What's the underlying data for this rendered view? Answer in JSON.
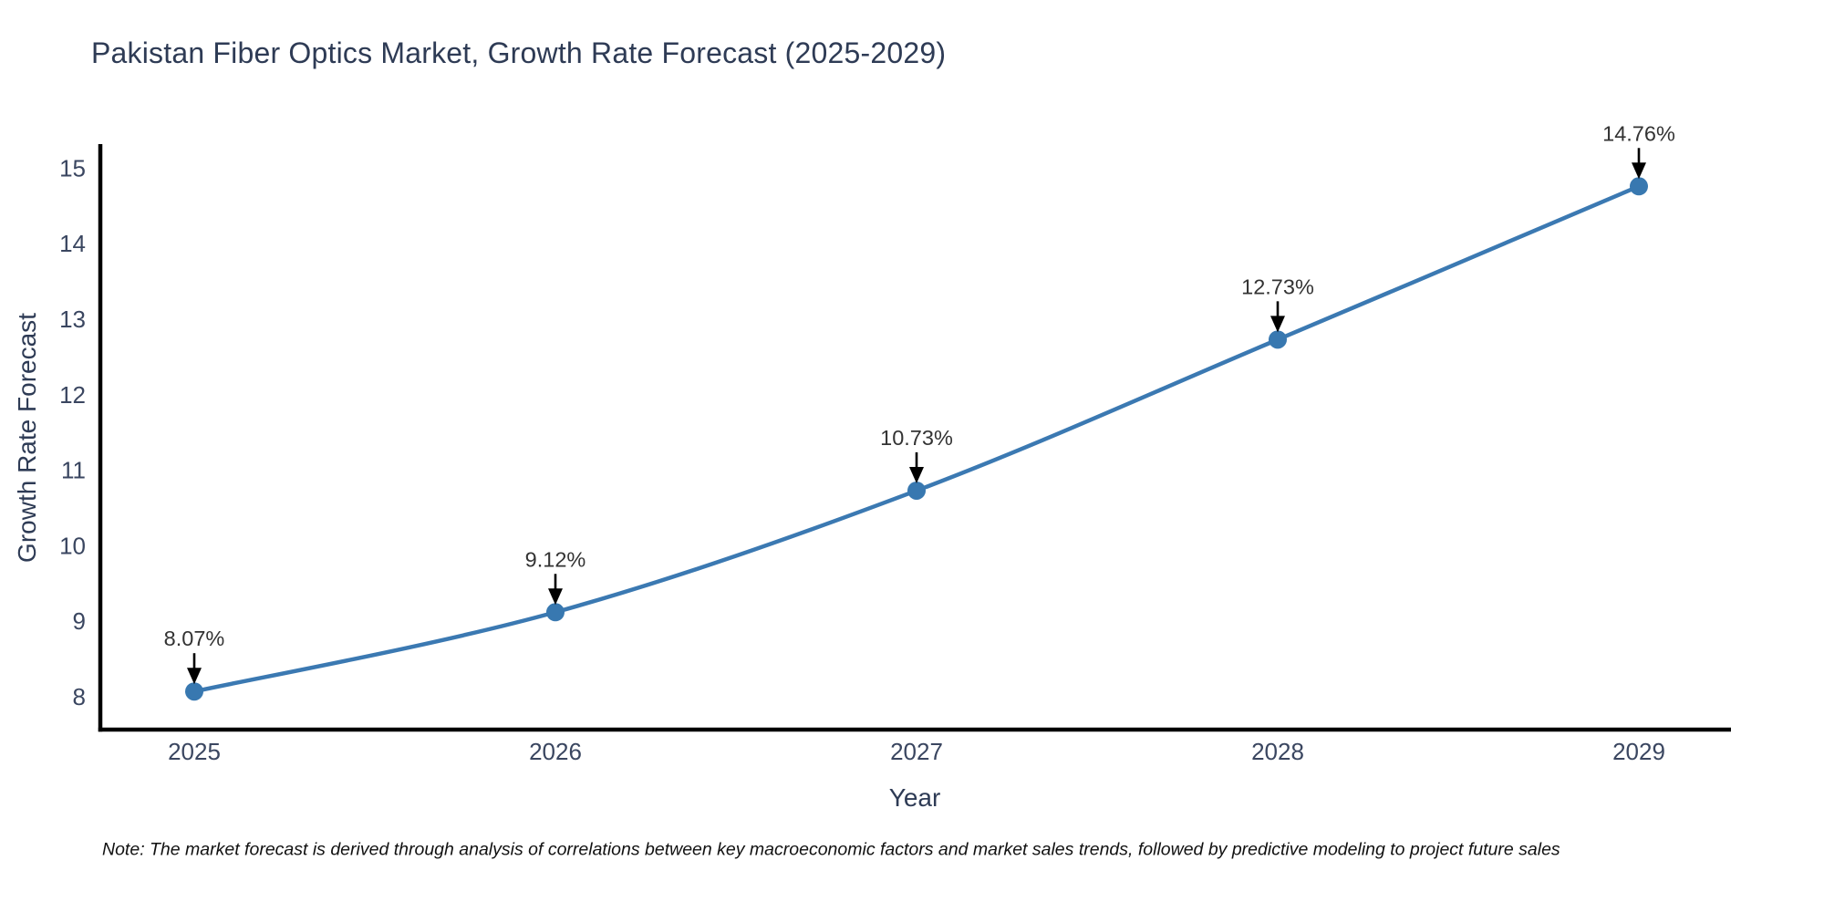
{
  "chart_data": {
    "type": "line",
    "title": "Pakistan Fiber Optics Market, Growth Rate Forecast (2025-2029)",
    "xlabel": "Year",
    "ylabel": "Growth Rate Forecast",
    "categories": [
      "2025",
      "2026",
      "2027",
      "2028",
      "2029"
    ],
    "series": [
      {
        "name": "Growth Rate Forecast",
        "values": [
          8.07,
          9.12,
          10.73,
          12.73,
          14.76
        ],
        "point_labels": [
          "8.07%",
          "9.12%",
          "10.73%",
          "12.73%",
          "14.76%"
        ]
      }
    ],
    "yticks": [
      8,
      9,
      10,
      11,
      12,
      13,
      14,
      15
    ],
    "ylim": [
      7.57,
      15.3
    ],
    "grid": false,
    "legend_position": "none",
    "colors": {
      "line": "#3b79b2",
      "marker": "#3878b0",
      "axis": "#000000",
      "tick_text": "#3a4660",
      "annotation_text": "#333333",
      "arrow": "#000000"
    },
    "note": "Note: The market forecast is derived through analysis of correlations between key macroeconomic factors and market sales trends, followed by predictive modeling to project future sales"
  }
}
